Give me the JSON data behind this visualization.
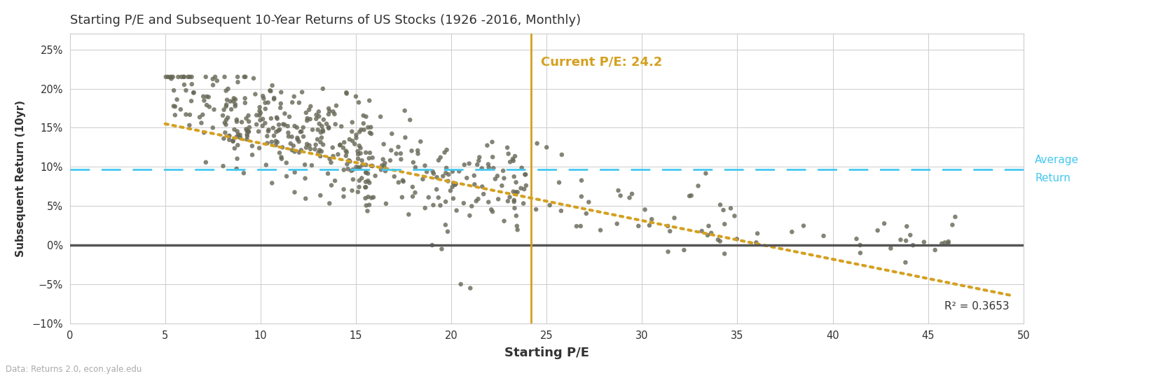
{
  "title": "Starting P/E and Subsequent 10-Year Returns of US Stocks (1926 -2016, Monthly)",
  "xlabel": "Starting P/E",
  "ylabel": "Subsequent Return (10yr)",
  "source": "Data: Returns 2.0, econ.yale.edu",
  "current_pe": 24.2,
  "current_pe_label": "Current P/E: 24.2",
  "average_return": 0.097,
  "average_label_top": "Average",
  "average_label_bottom": "Return",
  "r_squared": "R² = 0.3653",
  "xlim": [
    0,
    50
  ],
  "ylim": [
    -0.1,
    0.27
  ],
  "yticks": [
    -0.1,
    -0.05,
    0.0,
    0.05,
    0.1,
    0.15,
    0.2,
    0.25
  ],
  "xticks": [
    0,
    5,
    10,
    15,
    20,
    25,
    30,
    35,
    40,
    45,
    50
  ],
  "dot_color": "#666655",
  "trend_color": "#D4A020",
  "current_pe_color": "#D4A020",
  "average_color": "#45C8F0",
  "zero_line_color": "#555555",
  "background_color": "#FFFFFF",
  "grid_color": "#CCCCCC",
  "title_color": "#333333",
  "label_color": "#333333",
  "trend_x_start": 5.0,
  "trend_x_end": 49.5,
  "trend_y_start": 0.155,
  "trend_y_end": -0.065
}
